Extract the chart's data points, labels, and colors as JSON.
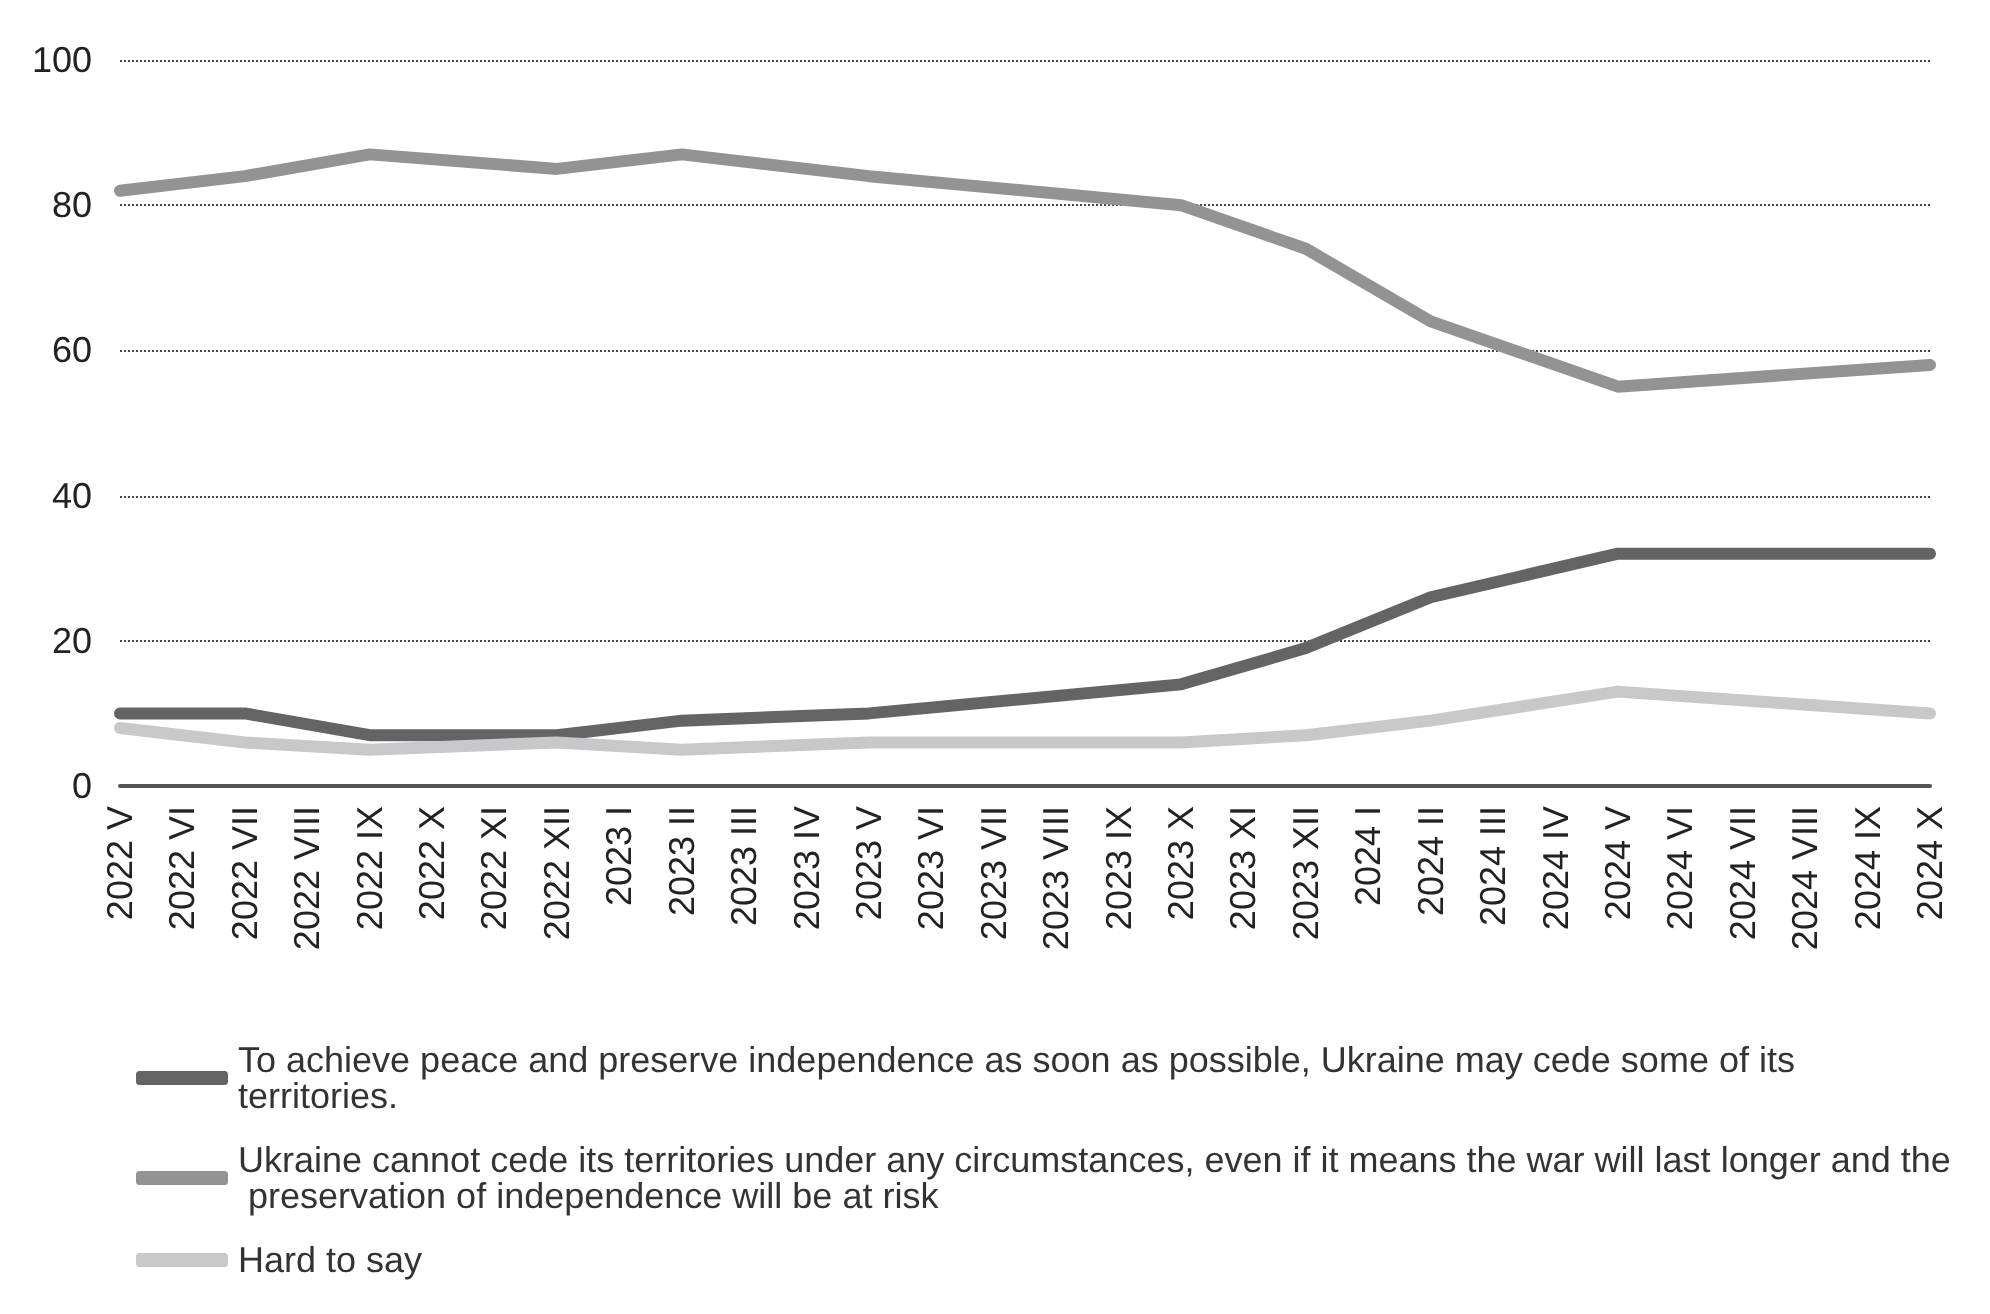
{
  "chart_data": {
    "type": "line",
    "categories": [
      "2022 V",
      "2022 VI",
      "2022 VII",
      "2022 VIII",
      "2022 IX",
      "2022 X",
      "2022 XI",
      "2022 XII",
      "2023 I",
      "2023 II",
      "2023 III",
      "2023 IV",
      "2023 V",
      "2023 VI",
      "2023 VII",
      "2023 VIII",
      "2023 IX",
      "2023 X",
      "2023 XI",
      "2023 XII",
      "2024 I",
      "2024 II",
      "2024 III",
      "2024 IV",
      "2024 V",
      "2024 VI",
      "2024 VII",
      "2024 VIII",
      "2024 IX",
      "2024 X"
    ],
    "series": [
      {
        "name": "To achieve peace and preserve independence as soon as possible, Ukraine may cede some of its territories.",
        "color": "#646466",
        "values": [
          10,
          null,
          10,
          null,
          7,
          null,
          null,
          7,
          null,
          9,
          null,
          null,
          10,
          null,
          null,
          null,
          null,
          14,
          null,
          19,
          null,
          26,
          null,
          null,
          32,
          null,
          null,
          null,
          null,
          32
        ]
      },
      {
        "name": "Ukraine cannot cede its territories under any circumstances, even if it means the war will last longer and the preservation of independence will be at risk",
        "color": "#939396",
        "values": [
          82,
          null,
          84,
          null,
          87,
          null,
          null,
          85,
          null,
          87,
          null,
          null,
          84,
          null,
          null,
          null,
          null,
          80,
          null,
          74,
          null,
          64,
          null,
          null,
          55,
          null,
          null,
          null,
          null,
          58
        ]
      },
      {
        "name": "Hard to say",
        "color": "#c8c8ca",
        "values": [
          8,
          null,
          6,
          null,
          5,
          null,
          null,
          6,
          null,
          5,
          null,
          null,
          6,
          null,
          null,
          null,
          null,
          6,
          null,
          7,
          null,
          9,
          null,
          null,
          13,
          null,
          null,
          null,
          null,
          10
        ]
      }
    ],
    "ylim": [
      0,
      100
    ],
    "yticks": [
      0,
      20,
      40,
      60,
      80,
      100
    ],
    "grid": "y",
    "legend": "bottom",
    "marker": "none",
    "line_style": "solid"
  }
}
